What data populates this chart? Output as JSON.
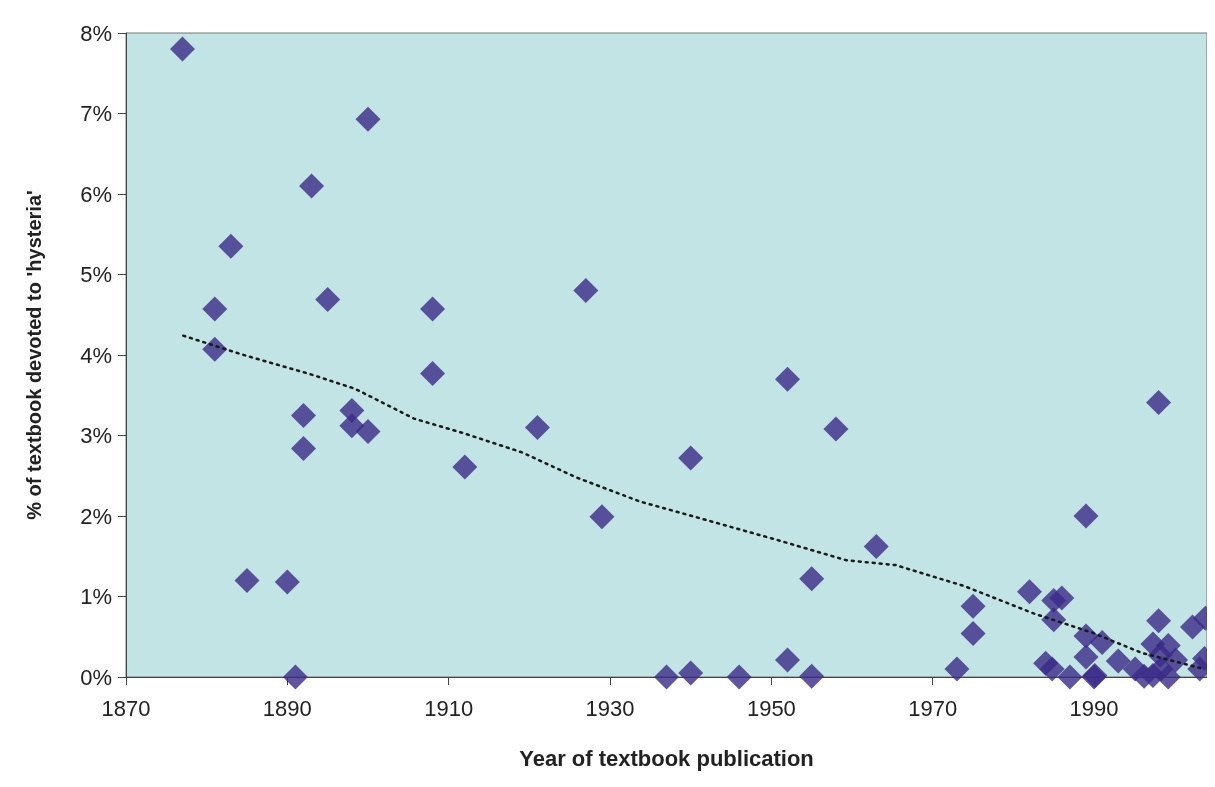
{
  "chart_data": {
    "type": "scatter",
    "xlabel": "Year of textbook publication",
    "ylabel": "% of textbook devoted to 'hysteria'",
    "xlim": [
      1870,
      2004
    ],
    "xticks": [
      1870,
      1890,
      1910,
      1930,
      1950,
      1970,
      1990
    ],
    "ylim": [
      0,
      8
    ],
    "yticks": [
      {
        "value": 0,
        "label": "0%"
      },
      {
        "value": 1,
        "label": "1%"
      },
      {
        "value": 2,
        "label": "2%"
      },
      {
        "value": 3,
        "label": "3%"
      },
      {
        "value": 4,
        "label": "4%"
      },
      {
        "value": 5,
        "label": "5%"
      },
      {
        "value": 6,
        "label": "6%"
      },
      {
        "value": 7,
        "label": "7%"
      },
      {
        "value": 8,
        "label": "8%"
      }
    ],
    "grid": false,
    "marker": "diamond",
    "series": [
      {
        "color": "#3b2a88",
        "x": [
          1877,
          1900,
          1893,
          1883,
          1881,
          1895,
          1881,
          1908,
          1908,
          1927,
          1892,
          1898,
          1898,
          1900,
          1892,
          1912,
          1921,
          1929,
          1885,
          1890,
          1891,
          1940,
          1937,
          1940,
          1946,
          1952,
          1958,
          1955,
          1952,
          1955,
          1963,
          1973,
          1975,
          1975,
          1982,
          1985,
          1986,
          1985,
          1989,
          1998,
          1998,
          2002.2,
          1989,
          1991,
          1989,
          1993,
          1997.3,
          1999.2,
          2000.1,
          1984,
          1984.8,
          1987,
          1990.1,
          1990,
          1995.1,
          1996.2,
          1997.3,
          1998.3,
          1999.2,
          1998.2,
          2003.1,
          2003.7,
          2003.8
        ],
        "values": [
          7.8,
          6.93,
          6.1,
          5.35,
          4.57,
          4.69,
          4.07,
          4.57,
          3.77,
          4.8,
          3.25,
          3.31,
          3.12,
          3.05,
          2.84,
          2.61,
          3.1,
          1.99,
          1.2,
          1.18,
          0,
          2.72,
          0,
          0.05,
          0,
          3.7,
          3.08,
          1.22,
          0.21,
          0.01,
          1.62,
          0.1,
          0.88,
          0.54,
          1.06,
          0.95,
          0.98,
          0.71,
          2,
          3.41,
          0.7,
          0.62,
          0.51,
          0.43,
          0.25,
          0.2,
          0.41,
          0.39,
          0.21,
          0.17,
          0.1,
          0,
          0.02,
          0,
          0.1,
          0.01,
          0.02,
          0.1,
          0,
          0.27,
          0.1,
          0.23,
          0.73
        ]
      },
      {
        "type": "line",
        "color": "#1a1a1a",
        "line_style": "dotted",
        "marker": "none",
        "x": [
          1877.1,
          1884.6,
          1892.9,
          1898.4,
          1905.7,
          1911.8,
          1919.1,
          1925.8,
          1933.7,
          1942.3,
          1950.8,
          1959.3,
          1965.4,
          1973.9,
          1982.5,
          1989.8,
          1995.9,
          2003.6
        ],
        "values": [
          4.24,
          4.0,
          3.76,
          3.58,
          3.21,
          3.03,
          2.79,
          2.48,
          2.18,
          1.94,
          1.7,
          1.45,
          1.39,
          1.13,
          0.79,
          0.55,
          0.3,
          0.1
        ]
      }
    ]
  }
}
